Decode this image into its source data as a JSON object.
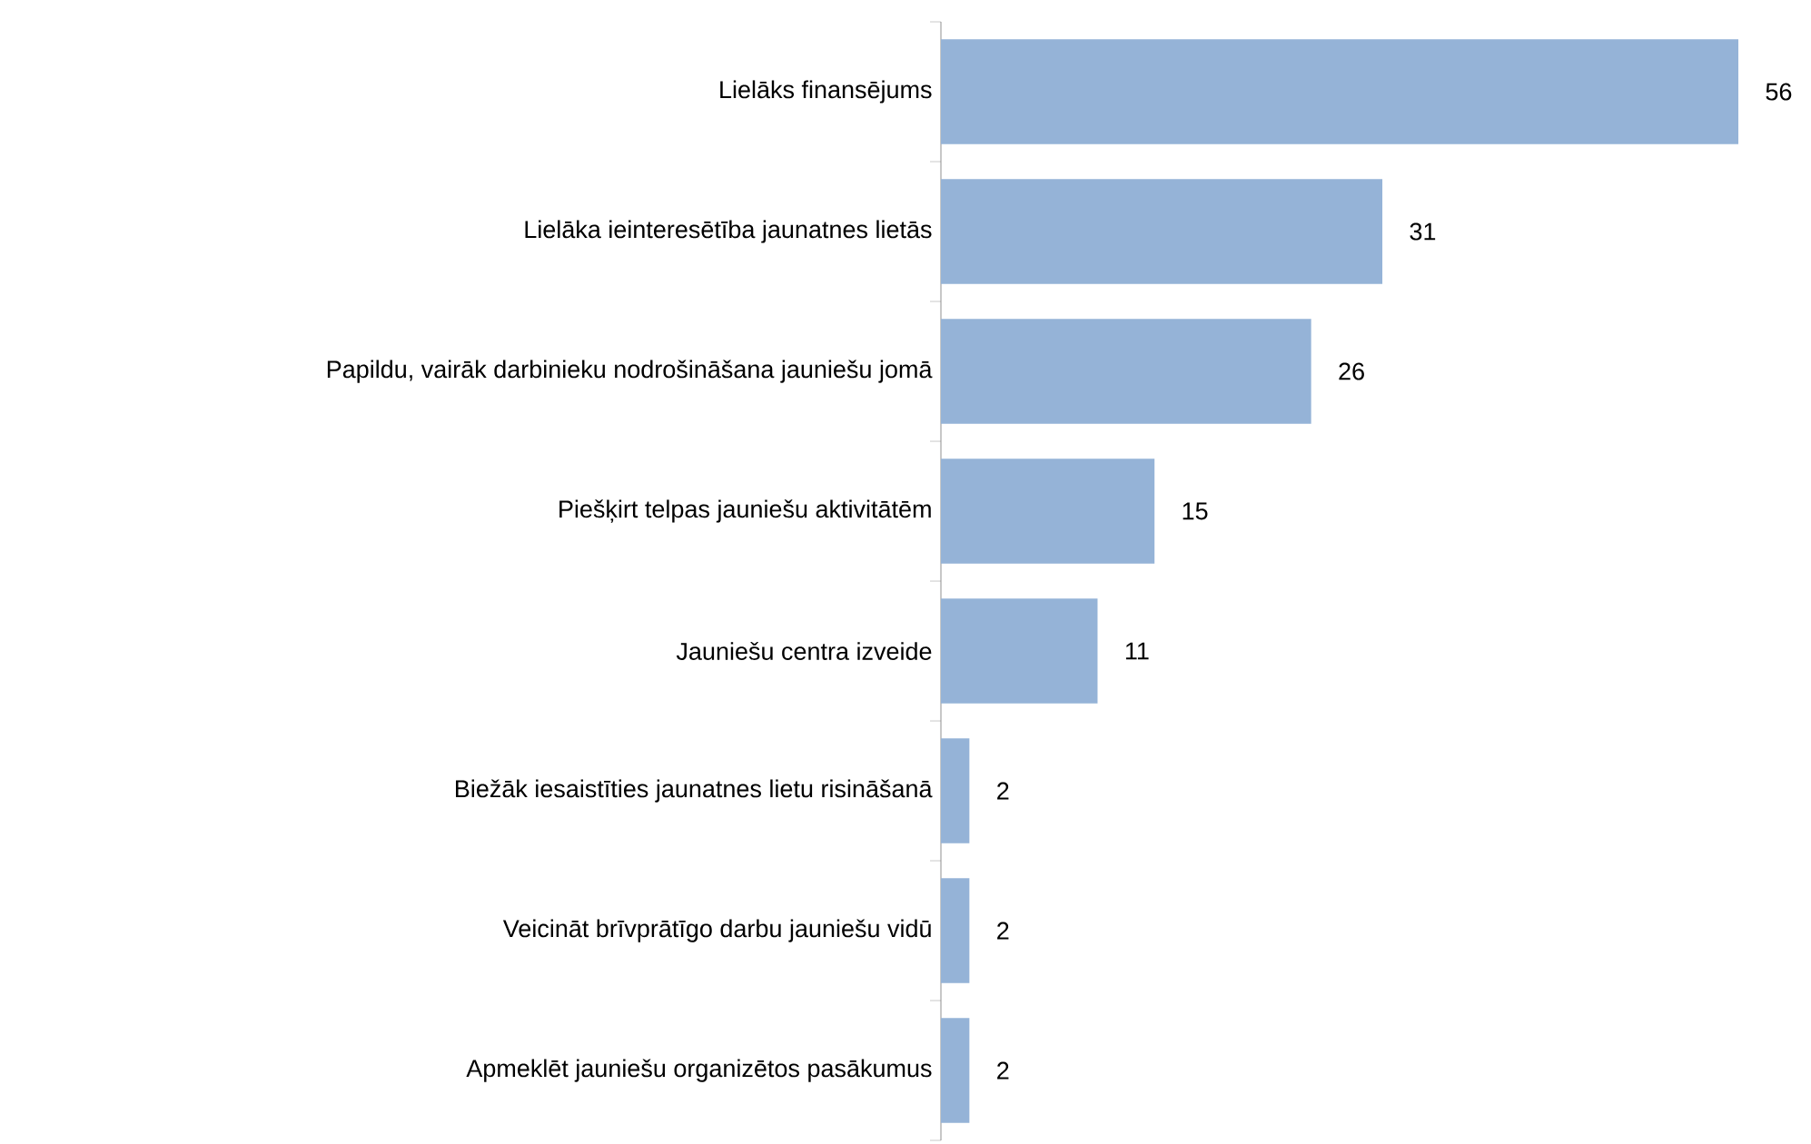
{
  "chart_data": {
    "type": "bar",
    "orientation": "horizontal",
    "categories": [
      "Lielāks finansējums",
      "Lielāka ieinteresētība jaunatnes lietās",
      "Papildu, vairāk darbinieku nodrošināšana jauniešu jomā",
      "Piešķirt telpas jauniešu aktivitātēm",
      "Jauniešu centra izveide",
      "Biežāk iesaistīties jaunatnes lietu risināšanā",
      "Veicināt brīvprātīgo darbu jauniešu vidū",
      "Apmeklēt jauniešu organizētos pasākumus"
    ],
    "values": [
      56,
      31,
      26,
      15,
      11,
      2,
      2,
      2
    ],
    "color": "#95b3d7",
    "xlim": [
      0,
      56
    ],
    "data_labels": true,
    "tick_labels": "y"
  }
}
